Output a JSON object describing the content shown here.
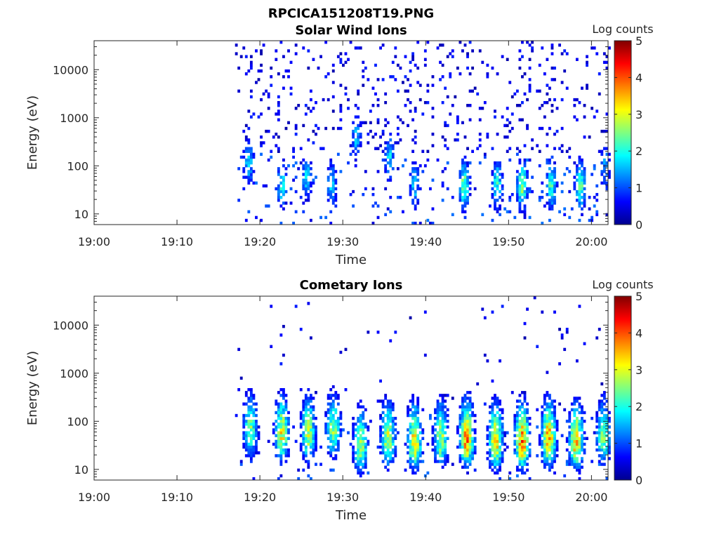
{
  "figure": {
    "filename": "RPCICA151208T19.PNG"
  },
  "colormap": {
    "name": "jet",
    "stops": [
      "#00008f",
      "#0000ff",
      "#00ffff",
      "#ffff00",
      "#ff0000",
      "#800000"
    ]
  },
  "chart_data": [
    {
      "type": "heatmap",
      "title": "Solar Wind Ions",
      "xlabel": "Time",
      "ylabel": "Energy (eV)",
      "x_ticks": [
        "19:00",
        "19:10",
        "19:20",
        "19:30",
        "19:40",
        "19:50",
        "20:00"
      ],
      "y_ticks": [
        "10",
        "100",
        "1000",
        "10000"
      ],
      "y_scale": "log",
      "x_range": [
        "19:00",
        "20:02"
      ],
      "y_range": [
        6,
        40000
      ],
      "colorbar": {
        "label": "Log counts",
        "ticks": [
          "0",
          "1",
          "2",
          "3",
          "4",
          "5"
        ],
        "range": [
          0,
          5
        ]
      },
      "data_start": "19:17",
      "data_end": "20:02",
      "bursts": [
        {
          "time": "19:18.5",
          "peak_energy_eV": 120,
          "peak_log_counts": 1.8
        },
        {
          "time": "19:22.5",
          "peak_energy_eV": 40,
          "peak_log_counts": 2.0
        },
        {
          "time": "19:25.5",
          "peak_energy_eV": 60,
          "peak_log_counts": 1.8
        },
        {
          "time": "19:28.5",
          "peak_energy_eV": 40,
          "peak_log_counts": 1.7
        },
        {
          "time": "19:31.5",
          "peak_energy_eV": 400,
          "peak_log_counts": 1.6
        },
        {
          "time": "19:35.5",
          "peak_energy_eV": 150,
          "peak_log_counts": 1.8
        },
        {
          "time": "19:38.5",
          "peak_energy_eV": 40,
          "peak_log_counts": 1.7
        },
        {
          "time": "19:44.5",
          "peak_energy_eV": 40,
          "peak_log_counts": 2.6
        },
        {
          "time": "19:48.5",
          "peak_energy_eV": 40,
          "peak_log_counts": 2.2
        },
        {
          "time": "19:51.5",
          "peak_energy_eV": 40,
          "peak_log_counts": 2.8
        },
        {
          "time": "19:55",
          "peak_energy_eV": 40,
          "peak_log_counts": 2.3
        },
        {
          "time": "19:58.5",
          "peak_energy_eV": 40,
          "peak_log_counts": 2.5
        },
        {
          "time": "20:01.5",
          "peak_energy_eV": 100,
          "peak_log_counts": 1.5
        }
      ]
    },
    {
      "type": "heatmap",
      "title": "Cometary Ions",
      "xlabel": "Time",
      "ylabel": "Energy (eV)",
      "x_ticks": [
        "19:00",
        "19:10",
        "19:20",
        "19:30",
        "19:40",
        "19:50",
        "20:00"
      ],
      "y_ticks": [
        "10",
        "100",
        "1000",
        "10000"
      ],
      "y_scale": "log",
      "x_range": [
        "19:00",
        "20:02"
      ],
      "y_range": [
        6,
        40000
      ],
      "colorbar": {
        "label": "Log counts",
        "ticks": [
          "0",
          "1",
          "2",
          "3",
          "4",
          "5"
        ],
        "range": [
          0,
          5
        ]
      },
      "data_start": "19:17",
      "data_end": "20:02",
      "bursts": [
        {
          "time": "19:18.7",
          "peak_energy_eV": 60,
          "peak_log_counts": 2.6
        },
        {
          "time": "19:22.5",
          "peak_energy_eV": 50,
          "peak_log_counts": 3.2
        },
        {
          "time": "19:25.7",
          "peak_energy_eV": 50,
          "peak_log_counts": 2.9
        },
        {
          "time": "19:28.7",
          "peak_energy_eV": 60,
          "peak_log_counts": 2.7
        },
        {
          "time": "19:32",
          "peak_energy_eV": 30,
          "peak_log_counts": 2.9
        },
        {
          "time": "19:35.3",
          "peak_energy_eV": 40,
          "peak_log_counts": 3.0
        },
        {
          "time": "19:38.5",
          "peak_energy_eV": 35,
          "peak_log_counts": 3.4
        },
        {
          "time": "19:41.7",
          "peak_energy_eV": 40,
          "peak_log_counts": 2.9
        },
        {
          "time": "19:44.8",
          "peak_energy_eV": 40,
          "peak_log_counts": 3.9
        },
        {
          "time": "19:48.3",
          "peak_energy_eV": 35,
          "peak_log_counts": 3.5
        },
        {
          "time": "19:51.5",
          "peak_energy_eV": 35,
          "peak_log_counts": 4.0
        },
        {
          "time": "19:54.7",
          "peak_energy_eV": 40,
          "peak_log_counts": 3.7
        },
        {
          "time": "19:58",
          "peak_energy_eV": 35,
          "peak_log_counts": 3.6
        },
        {
          "time": "20:01.3",
          "peak_energy_eV": 45,
          "peak_log_counts": 2.7
        }
      ]
    }
  ]
}
